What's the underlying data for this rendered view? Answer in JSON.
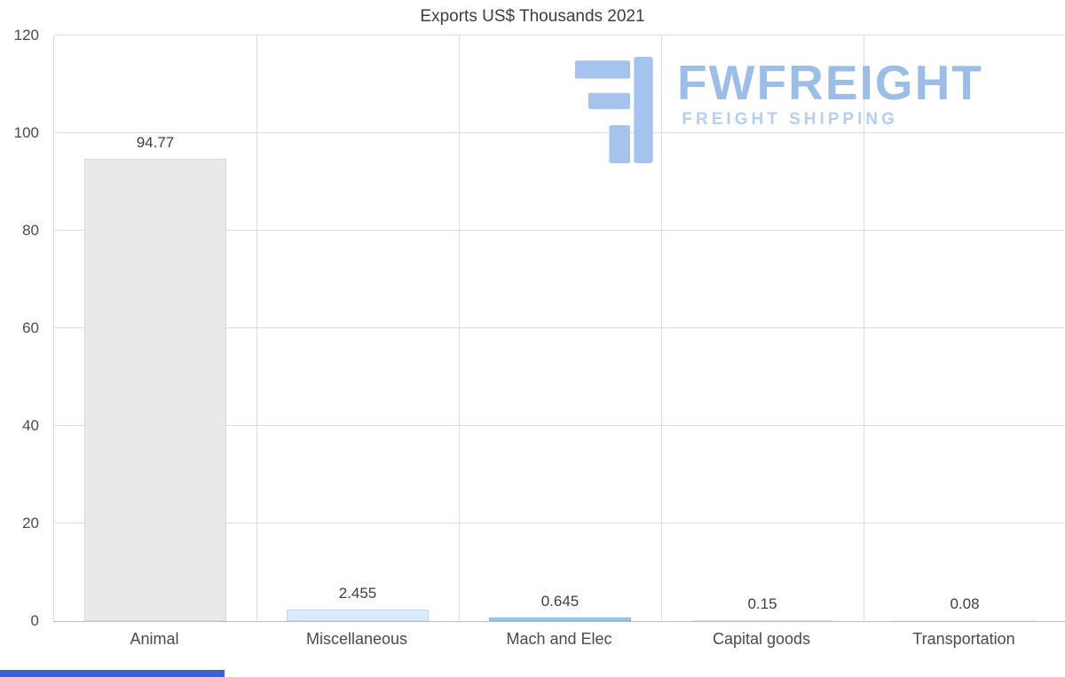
{
  "chart_data": {
    "type": "bar",
    "title": "Exports US$ Thousands 2021",
    "categories": [
      "Animal",
      "Miscellaneous",
      "Mach and Elec",
      "Capital goods",
      "Transportation"
    ],
    "values": [
      94.77,
      2.455,
      0.645,
      0.15,
      0.08
    ],
    "value_labels": [
      "94.77",
      "2.455",
      "0.645",
      "0.15",
      "0.08"
    ],
    "bar_colors": [
      "#e9e9e9",
      "#d9ebfc",
      "#a6cbe9",
      "#dcedfc",
      "#eef6fd"
    ],
    "bar_border_colors": [
      "#d8d8d8",
      "#bcd9f4",
      "#85b4d9",
      "#cfe4f7",
      "#e4f0fa"
    ],
    "xlabel": "",
    "ylabel": "",
    "ylim": [
      0,
      120
    ],
    "yticks": [
      0,
      20,
      40,
      60,
      80,
      100,
      120
    ],
    "grid": "horizontal gridlines plus vertical category separators",
    "legend": "none"
  },
  "logo": {
    "name": "FWFREIGHT",
    "tagline": "FREIGHT SHIPPING",
    "icon": "stylized-F-monogram",
    "color_name": "#9cbde8",
    "color_tagline": "#b6cfef",
    "color_icon": "#a6c3ee"
  },
  "decor": {
    "bottom_bar_color": "#3c5fd1"
  }
}
